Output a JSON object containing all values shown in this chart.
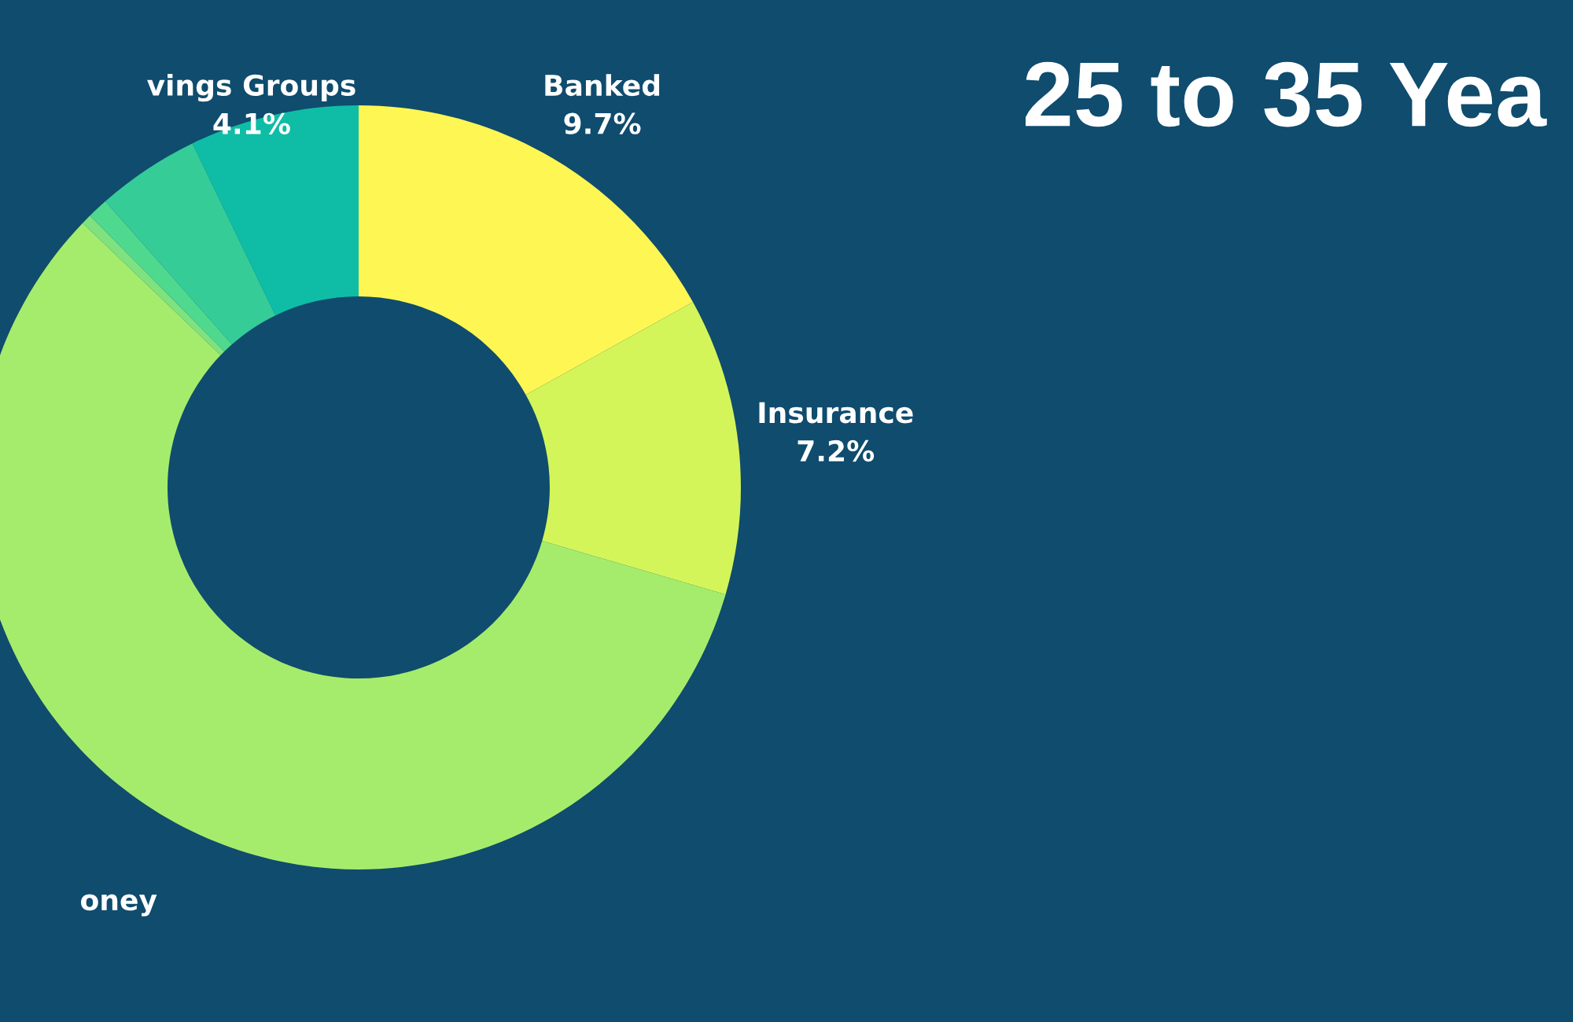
{
  "chart_data": {
    "type": "donut",
    "title": "25 to 35 Yea",
    "categories": [
      "Banked",
      "Insurance",
      "oney",
      null,
      null,
      null,
      "vings Groups"
    ],
    "values": [
      9.7,
      7.2,
      33,
      0.25,
      0.5,
      2.5,
      4.1
    ],
    "value_labels": [
      "9.7%",
      "7.2%",
      null,
      null,
      null,
      null,
      "4.1%"
    ],
    "colors": [
      "#fef653",
      "#d4f55a",
      "#a6ec6c",
      "#7fe27e",
      "#4fd98f",
      "#35cc98",
      "#0fbda6"
    ],
    "legend": false
  }
}
